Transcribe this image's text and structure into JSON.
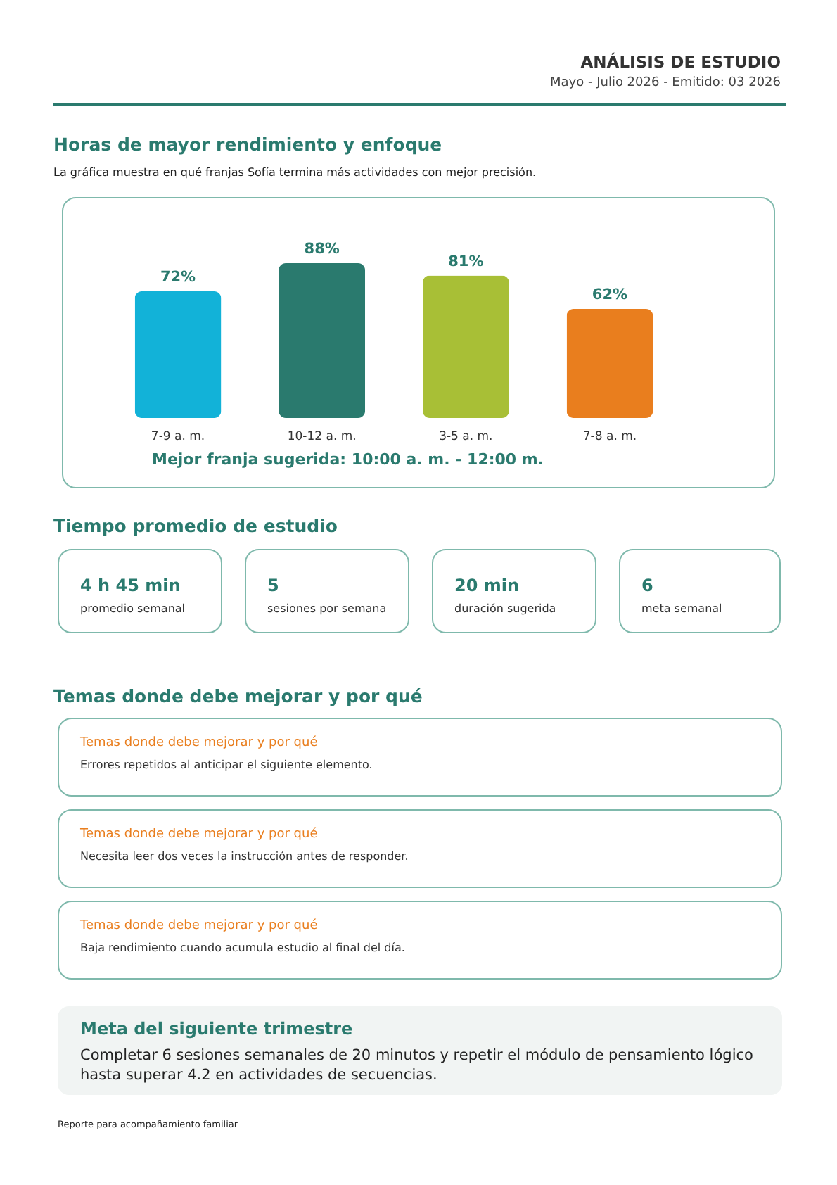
{
  "chart_data": [
    {
      "type": "other",
      "title": "ANÁLISIS DE ESTUDIO",
      "subtitle": "Mayo - Julio 2026 - Emitido: 03 2026"
    },
    {
      "type": "bar",
      "title": "Horas de mayor rendimiento y enfoque",
      "subtitle": "La gráfica muestra en qué franjas Sofía termina más actividades con mejor precisión.",
      "categories": [
        "7-9 a. m.",
        "10-12 a. m.",
        "3-5 a. m.",
        "7-8 a. m."
      ],
      "values": [
        72,
        88,
        81,
        62
      ],
      "value_labels": [
        "72%",
        "88%",
        "81%",
        "62%"
      ],
      "colors": [
        "#12b2d8",
        "#2a7a6e",
        "#a8bf36",
        "#e97e1e"
      ],
      "annotations": [
        "Mejor franja sugerida: 10:00 a. m. - 12:00 m."
      ]
    },
    {
      "type": "other",
      "title": "Tiempo promedio de estudio",
      "annotations": [
        "4 h 45 min",
        "promedio semanal",
        "5",
        "sesiones por semana",
        "20 min",
        "duración sugerida",
        "6",
        "meta semanal"
      ]
    },
    {
      "type": "other",
      "title": "Temas donde debe mejorar y por qué",
      "annotations": [
        "Temas donde debe mejorar y por qué",
        "Errores repetidos al anticipar el siguiente elemento.",
        "Temas donde debe mejorar y por qué",
        "Necesita leer dos veces la instrucción antes de responder.",
        "Temas donde debe mejorar y por qué",
        "Baja rendimiento cuando acumula estudio al final del día."
      ]
    },
    {
      "type": "other",
      "title": "Meta del siguiente trimestre",
      "annotations": [
        "Completar 6 sesiones semanales de 20 minutos y repetir el módulo de pensamiento lógico hasta superar 4.2 en actividades de secuencias.",
        "Reporte para acompañamiento familiar"
      ]
    }
  ]
}
